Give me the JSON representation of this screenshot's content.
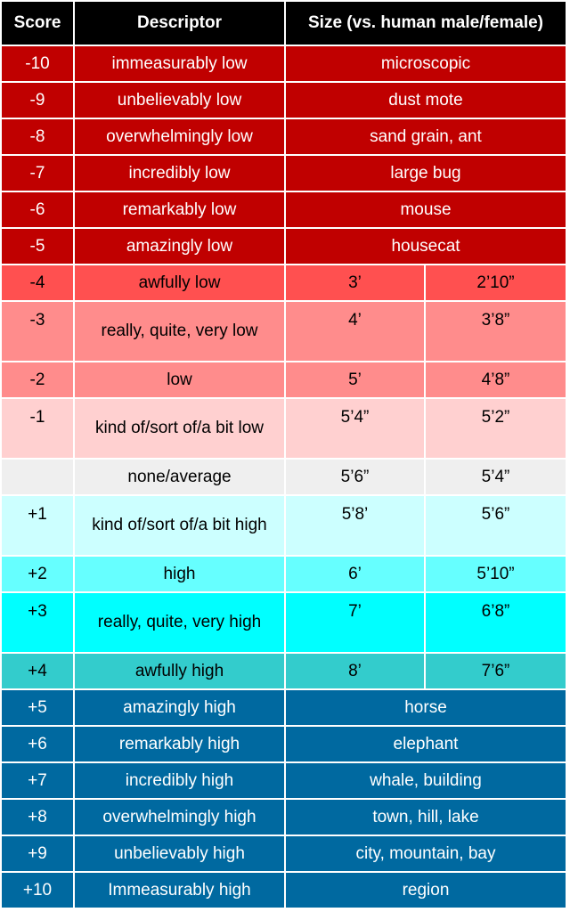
{
  "header": {
    "score": "Score",
    "descriptor": "Descriptor",
    "size": "Size (vs. human male/female)"
  },
  "colors": {
    "red_dark": "#c00000",
    "red_mid": "#ff5050",
    "red_light": "#ff8c8c",
    "red_pale": "#ffb3b3",
    "red_palest": "#ffd0d0",
    "neutral": "#efefef",
    "cyan_pale": "#ccffff",
    "cyan_light": "#66ffff",
    "cyan": "#00ffff",
    "teal": "#33cccc",
    "blue_dark": "#0069a0"
  },
  "rows": [
    {
      "score": "-10",
      "descriptor": "immeasurably low",
      "size": "microscopic"
    },
    {
      "score": "-9",
      "descriptor": "unbelievably low",
      "size": "dust mote"
    },
    {
      "score": "-8",
      "descriptor": "overwhelmingly low",
      "size": "sand grain, ant"
    },
    {
      "score": "-7",
      "descriptor": "incredibly low",
      "size": "large bug"
    },
    {
      "score": "-6",
      "descriptor": "remarkably low",
      "size": "mouse"
    },
    {
      "score": "-5",
      "descriptor": "amazingly low",
      "size": "housecat"
    },
    {
      "score": "-4",
      "descriptor": "awfully low",
      "male": "3’",
      "female": "2’10”"
    },
    {
      "score": "-3",
      "descriptor": "really, quite, very low",
      "male": "4’",
      "female": "3’8”"
    },
    {
      "score": "-2",
      "descriptor": "low",
      "male": "5’",
      "female": "4’8”"
    },
    {
      "score": "-1",
      "descriptor": "kind of/sort of/a bit low",
      "male": "5’4”",
      "female": "5’2”"
    },
    {
      "score": "",
      "descriptor": "none/average",
      "male": "5’6”",
      "female": "5’4”"
    },
    {
      "score": "+1",
      "descriptor": "kind of/sort of/a bit high",
      "male": "5’8’",
      "female": "5’6”"
    },
    {
      "score": "+2",
      "descriptor": "high",
      "male": "6’",
      "female": "5’10”"
    },
    {
      "score": "+3",
      "descriptor": "really, quite, very high",
      "male": "7’",
      "female": "6’8”"
    },
    {
      "score": "+4",
      "descriptor": "awfully high",
      "male": "8’",
      "female": "7’6”"
    },
    {
      "score": "+5",
      "descriptor": "amazingly high",
      "size": "horse"
    },
    {
      "score": "+6",
      "descriptor": "remarkably high",
      "size": "elephant"
    },
    {
      "score": "+7",
      "descriptor": "incredibly high",
      "size": "whale, building"
    },
    {
      "score": "+8",
      "descriptor": "overwhelmingly high",
      "size": "town, hill, lake"
    },
    {
      "score": "+9",
      "descriptor": "unbelievably high",
      "size": "city, mountain, bay"
    },
    {
      "score": "+10",
      "descriptor": "Immeasurably high",
      "size": "region"
    }
  ]
}
